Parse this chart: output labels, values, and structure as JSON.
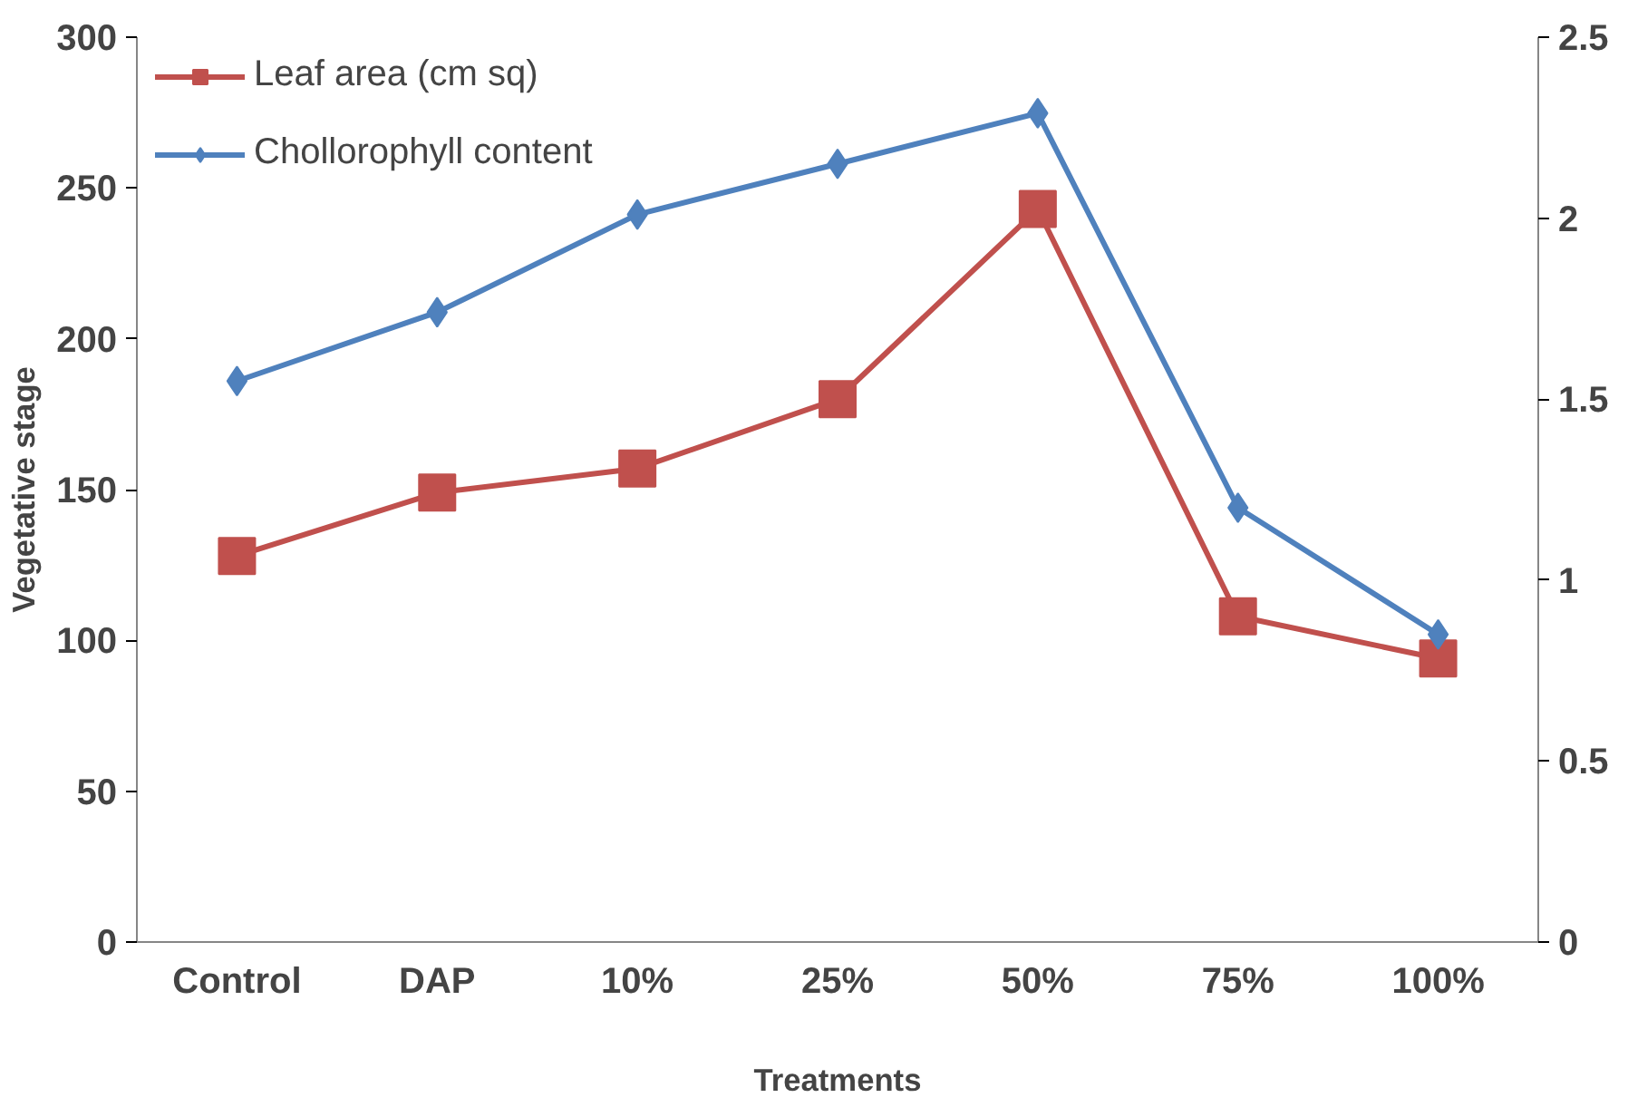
{
  "chart_data": {
    "type": "line",
    "xlabel": "Treatments",
    "ylabel": "Vegetative stage",
    "categories": [
      "Control",
      "DAP",
      "10%",
      "25%",
      "50%",
      "75%",
      "100%"
    ],
    "series": [
      {
        "name": "Leaf area (cm sq)",
        "color": "#c0504d",
        "marker": "square",
        "values": [
          128,
          149,
          157,
          180,
          243,
          108,
          94
        ]
      },
      {
        "name": "Chollorophyll content",
        "color": "#4f81bd",
        "marker": "diamond",
        "axis": "y2",
        "values": [
          1.55,
          1.74,
          2.01,
          2.15,
          2.29,
          1.2,
          0.85
        ]
      }
    ],
    "ylim": [
      0,
      300
    ],
    "yticks": [
      0,
      50,
      100,
      150,
      200,
      250,
      300
    ],
    "y2lim": [
      0,
      2.5
    ],
    "y2ticks": [
      0,
      0.5,
      1,
      1.5,
      2,
      {
        "value": 2.5,
        "label": "2.5"
      }
    ],
    "grid": false,
    "legend": "top left"
  }
}
